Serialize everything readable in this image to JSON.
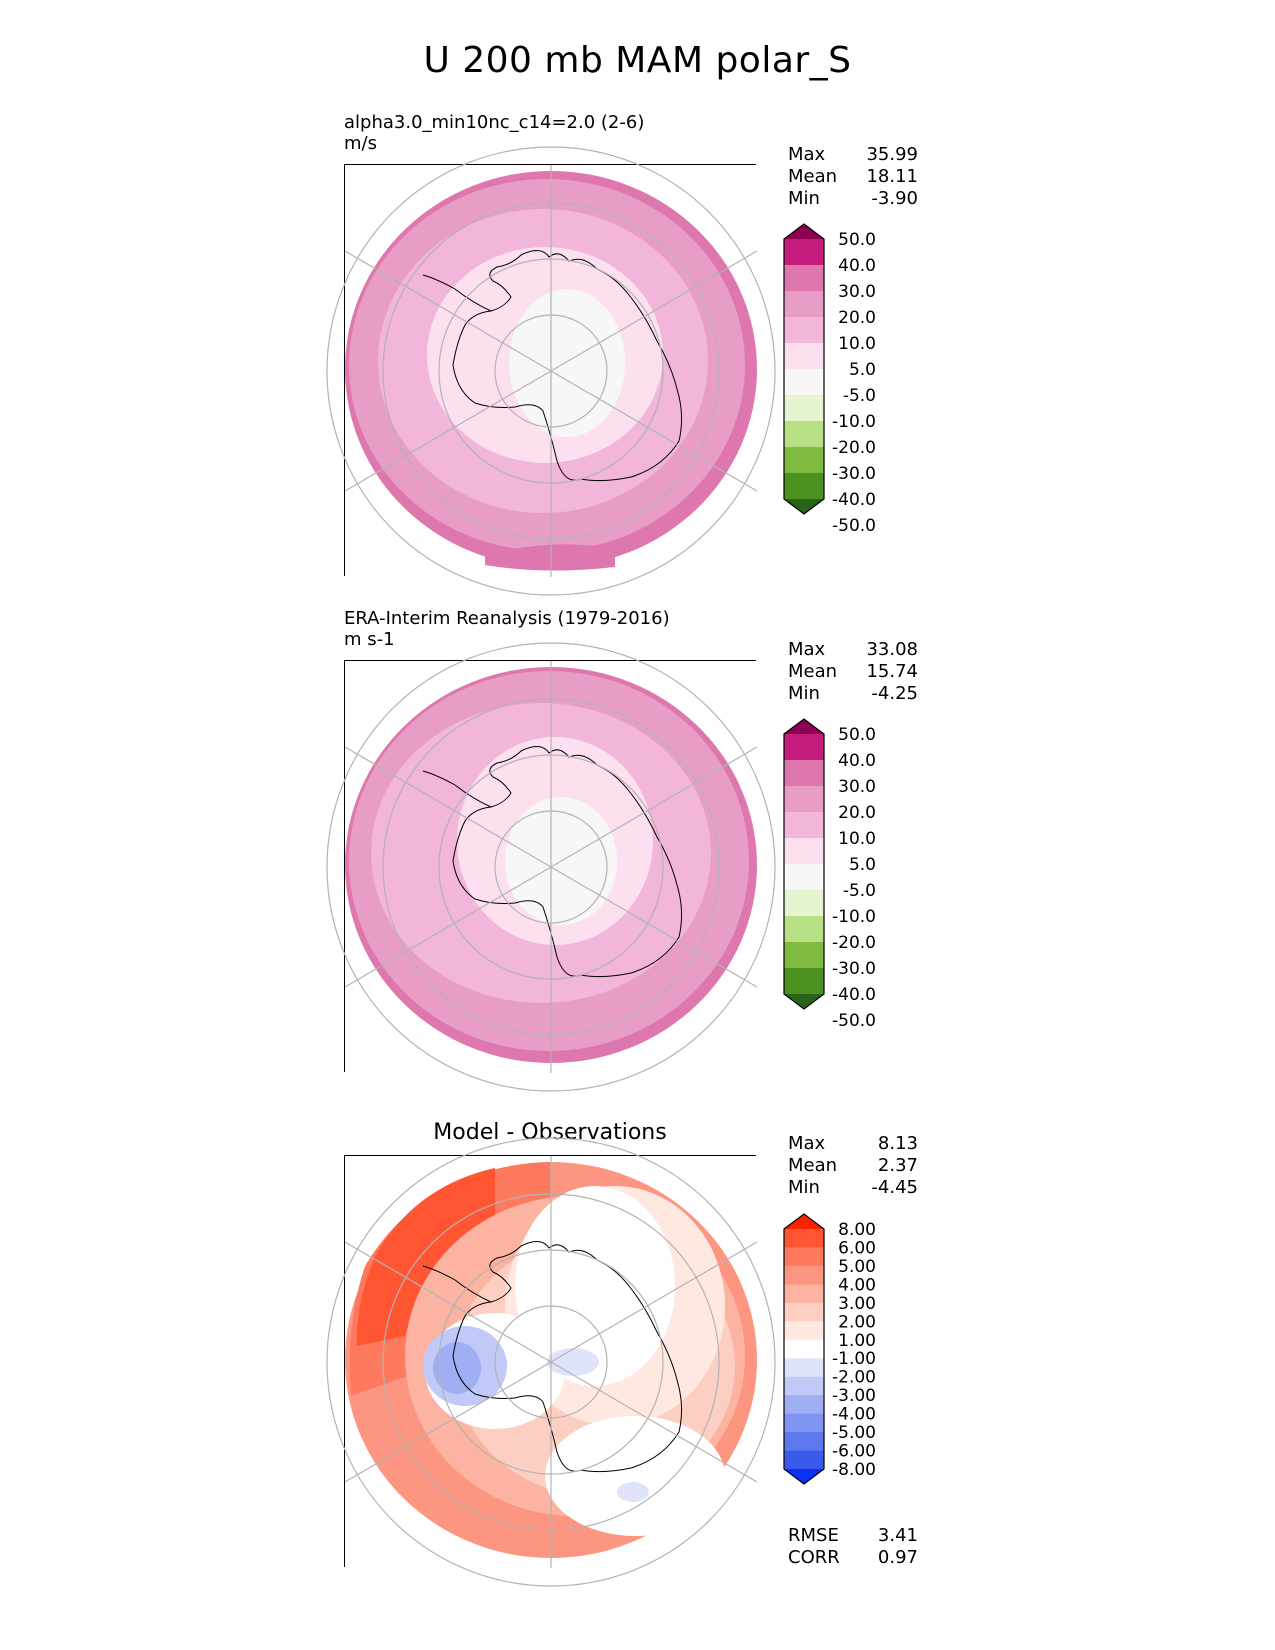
{
  "title": "U 200 mb MAM polar_S",
  "panels": [
    {
      "id": "model",
      "subtitle_line1": "alpha3.0_min10nc_c14=2.0 (2-6)",
      "subtitle_line2": "m/s",
      "stats": [
        {
          "label": "Max",
          "value": "35.99"
        },
        {
          "label": "Mean",
          "value": "18.11"
        },
        {
          "label": "Min",
          "value": "-3.90"
        }
      ]
    },
    {
      "id": "observations",
      "subtitle_line1": "ERA-Interim Reanalysis (1979-2016)",
      "subtitle_line2": "m s-1",
      "stats": [
        {
          "label": "Max",
          "value": "33.08"
        },
        {
          "label": "Mean",
          "value": "15.74"
        },
        {
          "label": "Min",
          "value": "-4.25"
        }
      ]
    },
    {
      "id": "difference",
      "center_title": "Model - Observations",
      "stats": [
        {
          "label": "Max",
          "value": "8.13"
        },
        {
          "label": "Mean",
          "value": "2.37"
        },
        {
          "label": "Min",
          "value": "-4.45"
        }
      ],
      "extra_stats": [
        {
          "label": "RMSE",
          "value": "3.41"
        },
        {
          "label": "CORR",
          "value": "0.97"
        }
      ]
    }
  ],
  "chart_data": [
    {
      "type": "heatmap",
      "title": "alpha3.0_min10nc_c14=2.0 (2-6)",
      "units": "m/s",
      "projection": "south polar stereographic",
      "colorbar": {
        "levels": [
          "50.0",
          "40.0",
          "30.0",
          "20.0",
          "10.0",
          "5.0",
          "-5.0",
          "-10.0",
          "-20.0",
          "-30.0",
          "-40.0",
          "-50.0"
        ],
        "colors": [
          "#8e0152",
          "#c51b7d",
          "#de77ae",
          "#e89dc6",
          "#f1b6da",
          "#fde0ef",
          "#f7f7f7",
          "#e6f5d0",
          "#b8e186",
          "#7fbc41",
          "#4d9221",
          "#276419"
        ],
        "extend": "both"
      },
      "zones": [
        {
          "level": "outer",
          "value_class": "30.0"
        },
        {
          "level": "mid",
          "value_class": "20.0"
        },
        {
          "level": "inner",
          "value_class": "10.0"
        },
        {
          "level": "core",
          "value_class": "5.0"
        },
        {
          "level": "pole",
          "value_class": "-5.0"
        }
      ]
    },
    {
      "type": "heatmap",
      "title": "ERA-Interim Reanalysis (1979-2016)",
      "units": "m s-1",
      "projection": "south polar stereographic",
      "colorbar": {
        "levels": [
          "50.0",
          "40.0",
          "30.0",
          "20.0",
          "10.0",
          "5.0",
          "-5.0",
          "-10.0",
          "-20.0",
          "-30.0",
          "-40.0",
          "-50.0"
        ],
        "colors": [
          "#8e0152",
          "#c51b7d",
          "#de77ae",
          "#e89dc6",
          "#f1b6da",
          "#fde0ef",
          "#f7f7f7",
          "#e6f5d0",
          "#b8e186",
          "#7fbc41",
          "#4d9221",
          "#276419"
        ],
        "extend": "both"
      },
      "zones": [
        {
          "level": "outer",
          "value_class": "30.0"
        },
        {
          "level": "mid",
          "value_class": "20.0"
        },
        {
          "level": "inner",
          "value_class": "10.0"
        },
        {
          "level": "core",
          "value_class": "5.0"
        },
        {
          "level": "pole",
          "value_class": "-5.0"
        }
      ]
    },
    {
      "type": "heatmap",
      "title": "Model - Observations",
      "projection": "south polar stereographic",
      "colorbar": {
        "levels": [
          "8.00",
          "6.00",
          "5.00",
          "4.00",
          "3.00",
          "2.00",
          "1.00",
          "-1.00",
          "-2.00",
          "-3.00",
          "-4.00",
          "-5.00",
          "-6.00",
          "-8.00"
        ],
        "colors": [
          "#ff2200",
          "#ff5533",
          "#fd7a5e",
          "#fc9680",
          "#fdb3a1",
          "#fdcfc2",
          "#fee8e0",
          "#ffffff",
          "#dfe4fb",
          "#c0c9f7",
          "#a0aff3",
          "#7f93f0",
          "#5d77ec",
          "#3a5aeb",
          "#0b30f7"
        ],
        "extend": "both"
      },
      "zones": [
        {
          "level": "outer-west",
          "value_class": "6.00"
        },
        {
          "level": "outer-east",
          "value_class": "4.00"
        },
        {
          "level": "mid",
          "value_class": "2.00"
        },
        {
          "level": "weddell",
          "value_class": "-4.00"
        },
        {
          "level": "pole",
          "value_class": "-1.00"
        }
      ]
    }
  ]
}
